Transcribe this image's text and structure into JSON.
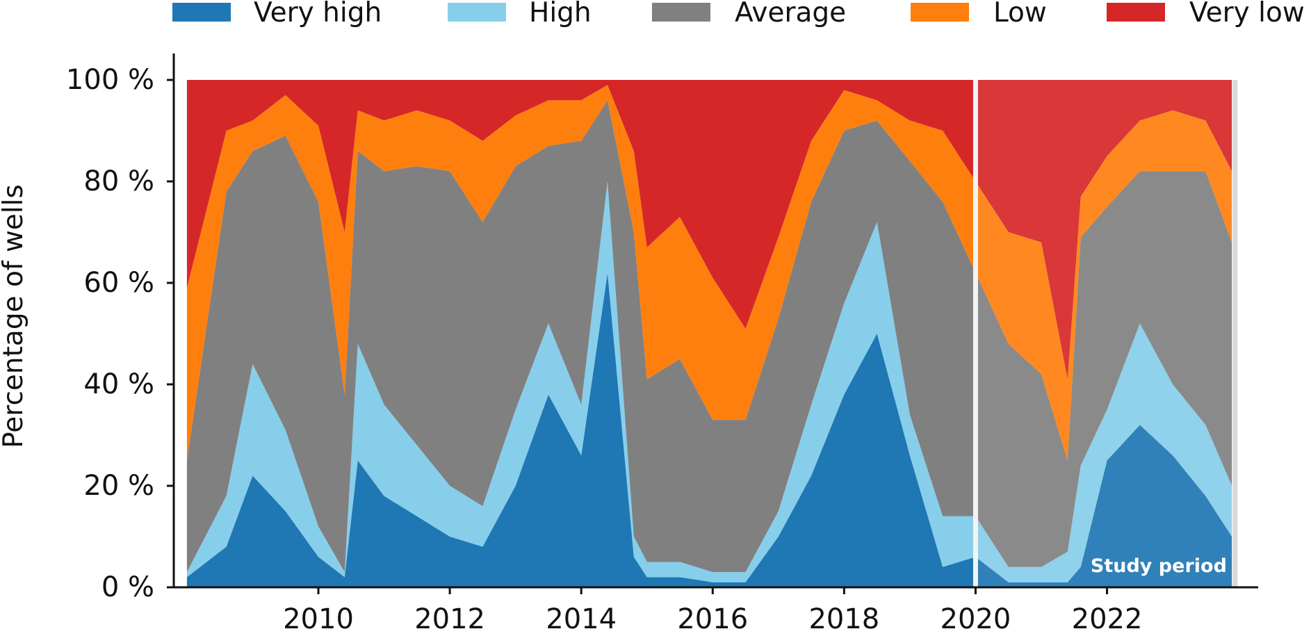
{
  "chart_data": {
    "type": "area",
    "title": "",
    "xlabel": "",
    "ylabel": "Percentage of wells",
    "xlim": [
      2007.8,
      2024.3
    ],
    "ylim": [
      0,
      100
    ],
    "x_ticks": [
      2010,
      2012,
      2014,
      2016,
      2018,
      2020,
      2022
    ],
    "y_ticks": [
      "0 %",
      "20 %",
      "40 %",
      "60 %",
      "80 %",
      "100 %"
    ],
    "legend": {
      "position": "top",
      "entries": [
        {
          "label": "Very high",
          "color": "#1f77b4"
        },
        {
          "label": "High",
          "color": "#87ceeb"
        },
        {
          "label": "Average",
          "color": "#808080"
        },
        {
          "label": "Low",
          "color": "#ff7f0e"
        },
        {
          "label": "Very low",
          "color": "#d62728"
        }
      ]
    },
    "series": [
      {
        "name": "Very high",
        "points": [
          {
            "x": 2008.0,
            "y": 2
          },
          {
            "x": 2008.6,
            "y": 8
          },
          {
            "x": 2009.0,
            "y": 22
          },
          {
            "x": 2009.5,
            "y": 15
          },
          {
            "x": 2010.0,
            "y": 6
          },
          {
            "x": 2010.4,
            "y": 2
          },
          {
            "x": 2010.6,
            "y": 25
          },
          {
            "x": 2011.0,
            "y": 18
          },
          {
            "x": 2011.5,
            "y": 14
          },
          {
            "x": 2012.0,
            "y": 10
          },
          {
            "x": 2012.5,
            "y": 8
          },
          {
            "x": 2013.0,
            "y": 20
          },
          {
            "x": 2013.5,
            "y": 38
          },
          {
            "x": 2014.0,
            "y": 26
          },
          {
            "x": 2014.4,
            "y": 62
          },
          {
            "x": 2014.8,
            "y": 6
          },
          {
            "x": 2015.0,
            "y": 2
          },
          {
            "x": 2015.5,
            "y": 2
          },
          {
            "x": 2016.0,
            "y": 1
          },
          {
            "x": 2016.5,
            "y": 1
          },
          {
            "x": 2017.0,
            "y": 10
          },
          {
            "x": 2017.5,
            "y": 22
          },
          {
            "x": 2018.0,
            "y": 38
          },
          {
            "x": 2018.5,
            "y": 50
          },
          {
            "x": 2019.0,
            "y": 26
          },
          {
            "x": 2019.5,
            "y": 4
          },
          {
            "x": 2020.0,
            "y": 6
          },
          {
            "x": 2020.5,
            "y": 1
          },
          {
            "x": 2021.0,
            "y": 1
          },
          {
            "x": 2021.4,
            "y": 1
          },
          {
            "x": 2021.6,
            "y": 4
          },
          {
            "x": 2022.0,
            "y": 25
          },
          {
            "x": 2022.5,
            "y": 32
          },
          {
            "x": 2023.0,
            "y": 26
          },
          {
            "x": 2023.5,
            "y": 18
          },
          {
            "x": 2023.9,
            "y": 10
          }
        ]
      },
      {
        "name": "High",
        "points": [
          {
            "x": 2008.0,
            "y": 1
          },
          {
            "x": 2008.6,
            "y": 10
          },
          {
            "x": 2009.0,
            "y": 22
          },
          {
            "x": 2009.5,
            "y": 16
          },
          {
            "x": 2010.0,
            "y": 6
          },
          {
            "x": 2010.4,
            "y": 1
          },
          {
            "x": 2010.6,
            "y": 23
          },
          {
            "x": 2011.0,
            "y": 18
          },
          {
            "x": 2011.5,
            "y": 14
          },
          {
            "x": 2012.0,
            "y": 10
          },
          {
            "x": 2012.5,
            "y": 8
          },
          {
            "x": 2013.0,
            "y": 15
          },
          {
            "x": 2013.5,
            "y": 14
          },
          {
            "x": 2014.0,
            "y": 10
          },
          {
            "x": 2014.4,
            "y": 18
          },
          {
            "x": 2014.8,
            "y": 4
          },
          {
            "x": 2015.0,
            "y": 3
          },
          {
            "x": 2015.5,
            "y": 3
          },
          {
            "x": 2016.0,
            "y": 2
          },
          {
            "x": 2016.5,
            "y": 2
          },
          {
            "x": 2017.0,
            "y": 5
          },
          {
            "x": 2017.5,
            "y": 14
          },
          {
            "x": 2018.0,
            "y": 18
          },
          {
            "x": 2018.5,
            "y": 22
          },
          {
            "x": 2019.0,
            "y": 8
          },
          {
            "x": 2019.5,
            "y": 10
          },
          {
            "x": 2020.0,
            "y": 8
          },
          {
            "x": 2020.5,
            "y": 3
          },
          {
            "x": 2021.0,
            "y": 3
          },
          {
            "x": 2021.4,
            "y": 6
          },
          {
            "x": 2021.6,
            "y": 20
          },
          {
            "x": 2022.0,
            "y": 10
          },
          {
            "x": 2022.5,
            "y": 20
          },
          {
            "x": 2023.0,
            "y": 14
          },
          {
            "x": 2023.5,
            "y": 14
          },
          {
            "x": 2023.9,
            "y": 10
          }
        ]
      },
      {
        "name": "Average",
        "points": [
          {
            "x": 2008.0,
            "y": 22
          },
          {
            "x": 2008.6,
            "y": 60
          },
          {
            "x": 2009.0,
            "y": 42
          },
          {
            "x": 2009.5,
            "y": 58
          },
          {
            "x": 2010.0,
            "y": 64
          },
          {
            "x": 2010.4,
            "y": 35
          },
          {
            "x": 2010.6,
            "y": 38
          },
          {
            "x": 2011.0,
            "y": 46
          },
          {
            "x": 2011.5,
            "y": 55
          },
          {
            "x": 2012.0,
            "y": 62
          },
          {
            "x": 2012.5,
            "y": 56
          },
          {
            "x": 2013.0,
            "y": 48
          },
          {
            "x": 2013.5,
            "y": 35
          },
          {
            "x": 2014.0,
            "y": 52
          },
          {
            "x": 2014.4,
            "y": 16
          },
          {
            "x": 2014.8,
            "y": 60
          },
          {
            "x": 2015.0,
            "y": 36
          },
          {
            "x": 2015.5,
            "y": 40
          },
          {
            "x": 2016.0,
            "y": 30
          },
          {
            "x": 2016.5,
            "y": 30
          },
          {
            "x": 2017.0,
            "y": 38
          },
          {
            "x": 2017.5,
            "y": 40
          },
          {
            "x": 2018.0,
            "y": 34
          },
          {
            "x": 2018.5,
            "y": 20
          },
          {
            "x": 2019.0,
            "y": 50
          },
          {
            "x": 2019.5,
            "y": 62
          },
          {
            "x": 2020.0,
            "y": 48
          },
          {
            "x": 2020.5,
            "y": 44
          },
          {
            "x": 2021.0,
            "y": 38
          },
          {
            "x": 2021.4,
            "y": 18
          },
          {
            "x": 2021.6,
            "y": 45
          },
          {
            "x": 2022.0,
            "y": 40
          },
          {
            "x": 2022.5,
            "y": 30
          },
          {
            "x": 2023.0,
            "y": 42
          },
          {
            "x": 2023.5,
            "y": 50
          },
          {
            "x": 2023.9,
            "y": 48
          }
        ]
      },
      {
        "name": "Low",
        "points": [
          {
            "x": 2008.0,
            "y": 34
          },
          {
            "x": 2008.6,
            "y": 12
          },
          {
            "x": 2009.0,
            "y": 6
          },
          {
            "x": 2009.5,
            "y": 8
          },
          {
            "x": 2010.0,
            "y": 15
          },
          {
            "x": 2010.4,
            "y": 32
          },
          {
            "x": 2010.6,
            "y": 8
          },
          {
            "x": 2011.0,
            "y": 10
          },
          {
            "x": 2011.5,
            "y": 11
          },
          {
            "x": 2012.0,
            "y": 10
          },
          {
            "x": 2012.5,
            "y": 16
          },
          {
            "x": 2013.0,
            "y": 10
          },
          {
            "x": 2013.5,
            "y": 9
          },
          {
            "x": 2014.0,
            "y": 8
          },
          {
            "x": 2014.4,
            "y": 3
          },
          {
            "x": 2014.8,
            "y": 16
          },
          {
            "x": 2015.0,
            "y": 26
          },
          {
            "x": 2015.5,
            "y": 28
          },
          {
            "x": 2016.0,
            "y": 28
          },
          {
            "x": 2016.5,
            "y": 18
          },
          {
            "x": 2017.0,
            "y": 16
          },
          {
            "x": 2017.5,
            "y": 12
          },
          {
            "x": 2018.0,
            "y": 8
          },
          {
            "x": 2018.5,
            "y": 4
          },
          {
            "x": 2019.0,
            "y": 8
          },
          {
            "x": 2019.5,
            "y": 14
          },
          {
            "x": 2020.0,
            "y": 18
          },
          {
            "x": 2020.5,
            "y": 22
          },
          {
            "x": 2021.0,
            "y": 26
          },
          {
            "x": 2021.4,
            "y": 16
          },
          {
            "x": 2021.6,
            "y": 8
          },
          {
            "x": 2022.0,
            "y": 10
          },
          {
            "x": 2022.5,
            "y": 10
          },
          {
            "x": 2023.0,
            "y": 12
          },
          {
            "x": 2023.5,
            "y": 10
          },
          {
            "x": 2023.9,
            "y": 14
          }
        ]
      },
      {
        "name": "Very low",
        "points": [
          {
            "x": 2008.0,
            "y": 41
          },
          {
            "x": 2008.6,
            "y": 10
          },
          {
            "x": 2009.0,
            "y": 8
          },
          {
            "x": 2009.5,
            "y": 3
          },
          {
            "x": 2010.0,
            "y": 9
          },
          {
            "x": 2010.4,
            "y": 30
          },
          {
            "x": 2010.6,
            "y": 6
          },
          {
            "x": 2011.0,
            "y": 8
          },
          {
            "x": 2011.5,
            "y": 6
          },
          {
            "x": 2012.0,
            "y": 8
          },
          {
            "x": 2012.5,
            "y": 12
          },
          {
            "x": 2013.0,
            "y": 7
          },
          {
            "x": 2013.5,
            "y": 4
          },
          {
            "x": 2014.0,
            "y": 4
          },
          {
            "x": 2014.4,
            "y": 1
          },
          {
            "x": 2014.8,
            "y": 14
          },
          {
            "x": 2015.0,
            "y": 33
          },
          {
            "x": 2015.5,
            "y": 27
          },
          {
            "x": 2016.0,
            "y": 39
          },
          {
            "x": 2016.5,
            "y": 49
          },
          {
            "x": 2017.0,
            "y": 31
          },
          {
            "x": 2017.5,
            "y": 12
          },
          {
            "x": 2018.0,
            "y": 2
          },
          {
            "x": 2018.5,
            "y": 4
          },
          {
            "x": 2019.0,
            "y": 8
          },
          {
            "x": 2019.5,
            "y": 10
          },
          {
            "x": 2020.0,
            "y": 20
          },
          {
            "x": 2020.5,
            "y": 30
          },
          {
            "x": 2021.0,
            "y": 32
          },
          {
            "x": 2021.4,
            "y": 59
          },
          {
            "x": 2021.6,
            "y": 23
          },
          {
            "x": 2022.0,
            "y": 15
          },
          {
            "x": 2022.5,
            "y": 8
          },
          {
            "x": 2023.0,
            "y": 6
          },
          {
            "x": 2023.5,
            "y": 8
          },
          {
            "x": 2023.9,
            "y": 18
          }
        ]
      }
    ],
    "annotations": [
      {
        "text": "Study period",
        "x_start": 2020,
        "x_end": 2023.95
      }
    ],
    "grid": false
  }
}
